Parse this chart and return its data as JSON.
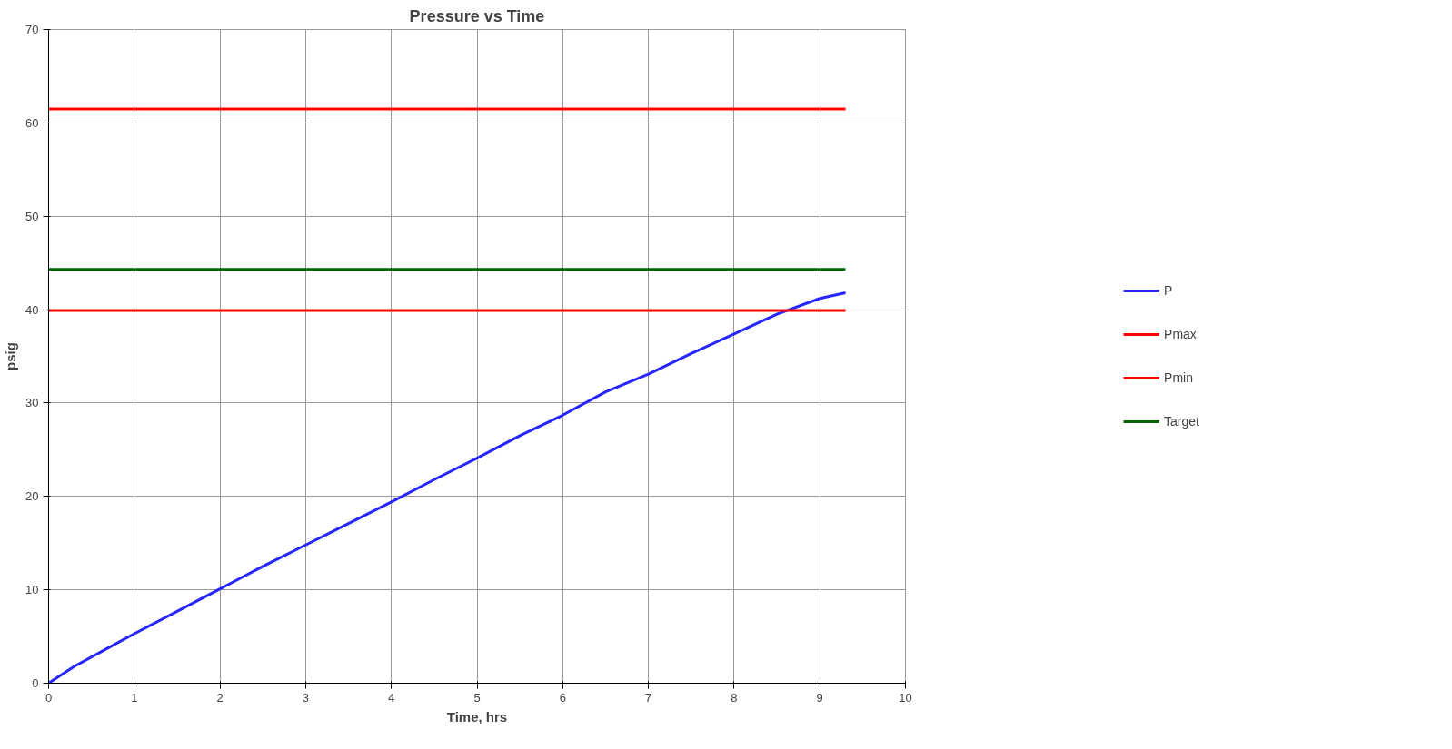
{
  "chart_data": {
    "type": "line",
    "title": "Pressure vs Time",
    "xlabel": "Time, hrs",
    "ylabel": "psig",
    "xlim": [
      0,
      10
    ],
    "ylim": [
      0,
      70
    ],
    "xticks": [
      0,
      1,
      2,
      3,
      4,
      5,
      6,
      7,
      8,
      9,
      10
    ],
    "yticks": [
      0,
      10,
      20,
      30,
      40,
      50,
      60,
      70
    ],
    "grid": true,
    "legend": "right",
    "marker": "none",
    "line_style": "solid",
    "series": [
      {
        "name": "P",
        "color": "#2626ff",
        "x": [
          0,
          0.3,
          0.7,
          1,
          1.5,
          2,
          2.5,
          3,
          3.5,
          4,
          4.5,
          5,
          5.5,
          6,
          6.5,
          7,
          7.5,
          8,
          8.5,
          9,
          9.3
        ],
        "values": [
          0,
          1.8,
          3.8,
          5.3,
          7.7,
          10.1,
          12.5,
          14.8,
          17.1,
          19.4,
          21.8,
          24.1,
          26.5,
          28.7,
          31.2,
          33.1,
          35.3,
          37.4,
          39.5,
          41.2,
          41.8
        ]
      },
      {
        "name": "Pmax",
        "color": "#ff0000",
        "x": [
          0,
          9.3
        ],
        "values": [
          61.5,
          61.5
        ]
      },
      {
        "name": "Pmin",
        "color": "#ff0000",
        "x": [
          0,
          9.3
        ],
        "values": [
          39.9,
          39.9
        ]
      },
      {
        "name": "Target",
        "color": "#006400",
        "x": [
          0,
          9.3
        ],
        "values": [
          44.3,
          44.3
        ]
      }
    ]
  }
}
